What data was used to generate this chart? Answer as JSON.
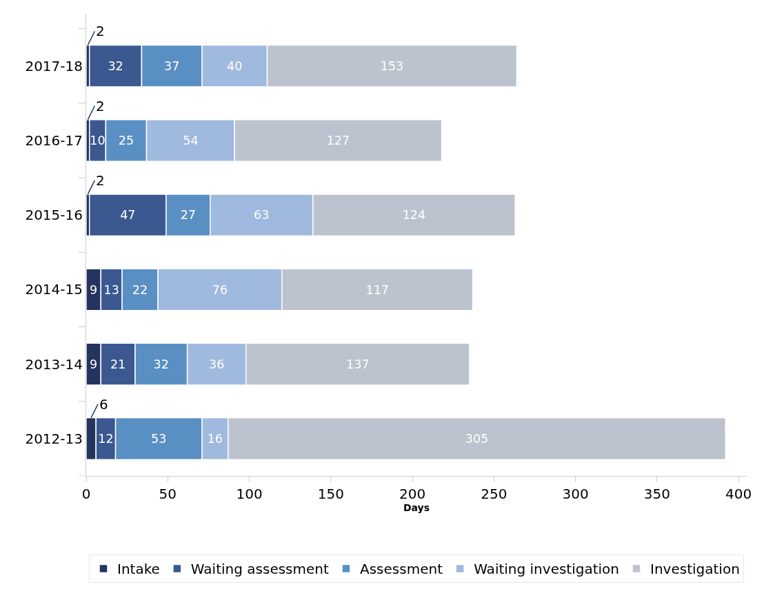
{
  "chart_data": {
    "type": "bar",
    "orientation": "horizontal",
    "stacked": true,
    "xlabel": "Days",
    "categories": [
      "2017-18",
      "2016-17",
      "2015-16",
      "2014-15",
      "2013-14",
      "2012-13"
    ],
    "series": [
      {
        "name": "Intake",
        "color": "#24345e",
        "values": [
          2,
          2,
          2,
          9,
          9,
          6
        ]
      },
      {
        "name": "Waiting assessment",
        "color": "#3b5990",
        "values": [
          32,
          10,
          47,
          13,
          21,
          12
        ]
      },
      {
        "name": "Assessment",
        "color": "#5a8fc3",
        "values": [
          37,
          25,
          27,
          22,
          32,
          53
        ]
      },
      {
        "name": "Waiting investigation",
        "color": "#a0b9de",
        "values": [
          40,
          54,
          63,
          76,
          36,
          16
        ]
      },
      {
        "name": "Investigation",
        "color": "#bcc3ce",
        "values": [
          153,
          127,
          124,
          117,
          137,
          305
        ]
      }
    ],
    "xlim": [
      0,
      405
    ],
    "xticks": [
      0,
      50,
      100,
      150,
      200,
      250,
      300,
      350,
      400
    ],
    "data_labels": true,
    "legend": "bottom"
  }
}
